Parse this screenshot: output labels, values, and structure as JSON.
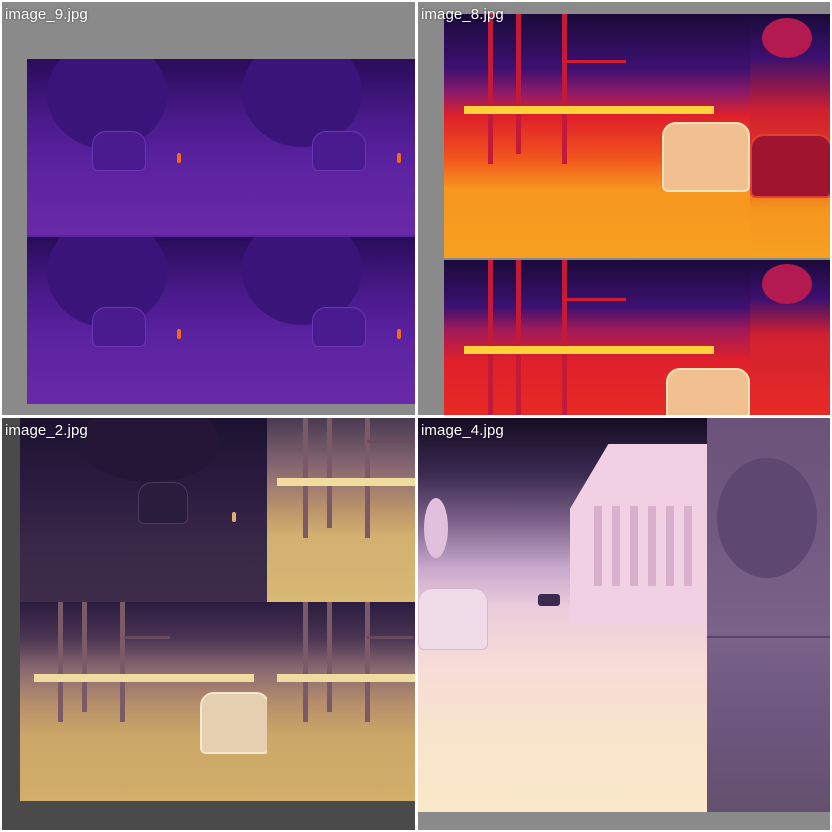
{
  "tiles": [
    {
      "caption": "image_9.jpg"
    },
    {
      "caption": "image_8.jpg"
    },
    {
      "caption": "image_2.jpg"
    },
    {
      "caption": "image_4.jpg"
    }
  ],
  "colors": {
    "tile_bg_light": "#8a8a8a",
    "tile_bg_dark": "#4a4a4a",
    "inferno_dark": "#1a0a3a",
    "inferno_purple": "#5a1e9a",
    "inferno_red": "#e0202a",
    "inferno_orange": "#f6961e",
    "magma_light": "#f6dcc8"
  }
}
